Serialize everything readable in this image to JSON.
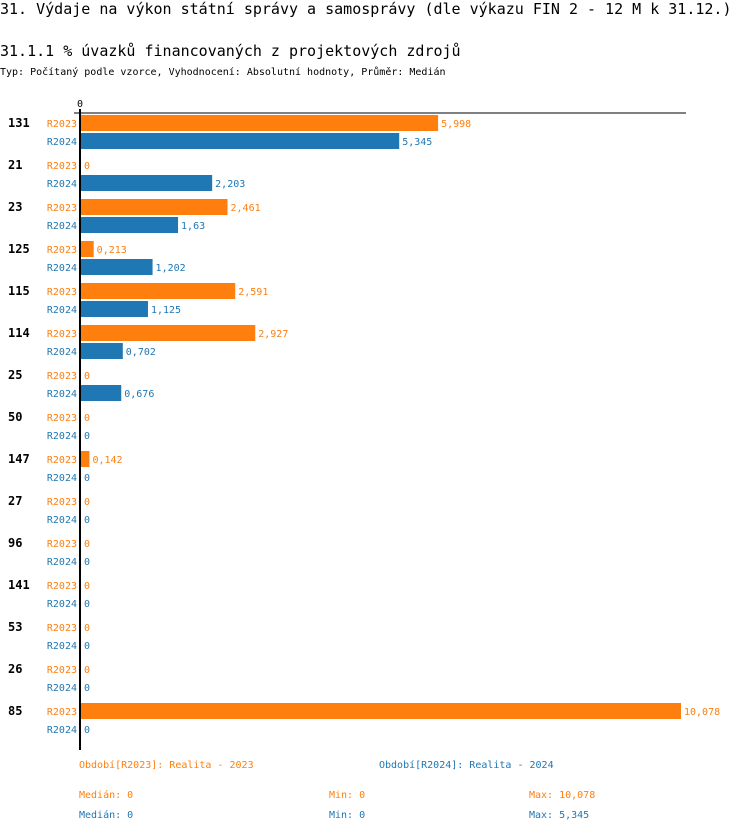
{
  "header": {
    "title": "31. Výdaje na výkon státní správy a samosprávy (dle výkazu FIN 2 - 12 M k 31.12.)",
    "subtitle": "31.1.1 % úvazků financovaných z projektových zdrojů",
    "meta": "Typ: Počítaný podle vzorce, Vyhodnocení: Absolutní hodnoty, Průměr: Medián"
  },
  "colors": {
    "R2023": "#ff7f0e",
    "R2024": "#1f77b4",
    "axis": "#000000"
  },
  "chart_data": {
    "type": "bar",
    "orientation": "horizontal",
    "title": "31.1.1 % úvazků financovaných z projektových zdrojů",
    "xlabel": "",
    "ylabel": "",
    "xlim": [
      0,
      10.078
    ],
    "x_ticks": [
      "0"
    ],
    "grid": false,
    "categories": [
      "131",
      "21",
      "23",
      "125",
      "115",
      "114",
      "25",
      "50",
      "147",
      "27",
      "96",
      "141",
      "53",
      "26",
      "85"
    ],
    "series": [
      {
        "name": "R2023",
        "values": [
          5.998,
          0,
          2.461,
          0.213,
          2.591,
          2.927,
          0,
          0,
          0.142,
          0,
          0,
          0,
          0,
          0,
          10.078
        ],
        "labels": [
          "5,998",
          "0",
          "2,461",
          "0,213",
          "2,591",
          "2,927",
          "0",
          "0",
          "0,142",
          "0",
          "0",
          "0",
          "0",
          "0",
          "10,078"
        ]
      },
      {
        "name": "R2024",
        "values": [
          5.345,
          2.203,
          1.63,
          1.202,
          1.125,
          0.702,
          0.676,
          0,
          0,
          0,
          0,
          0,
          0,
          0,
          0
        ],
        "labels": [
          "5,345",
          "2,203",
          "1,63",
          "1,202",
          "1,125",
          "0,702",
          "0,676",
          "0",
          "0",
          "0",
          "0",
          "0",
          "0",
          "0",
          "0"
        ]
      }
    ]
  },
  "legend": {
    "r2023": "Období[R2023]: Realita - 2023",
    "r2024": "Období[R2024]: Realita - 2024"
  },
  "stats": {
    "r2023": {
      "median": "Medián: 0",
      "min": "Min: 0",
      "max": "Max: 10,078"
    },
    "r2024": {
      "median": "Medián: 0",
      "min": "Min: 0",
      "max": "Max: 5,345"
    }
  }
}
